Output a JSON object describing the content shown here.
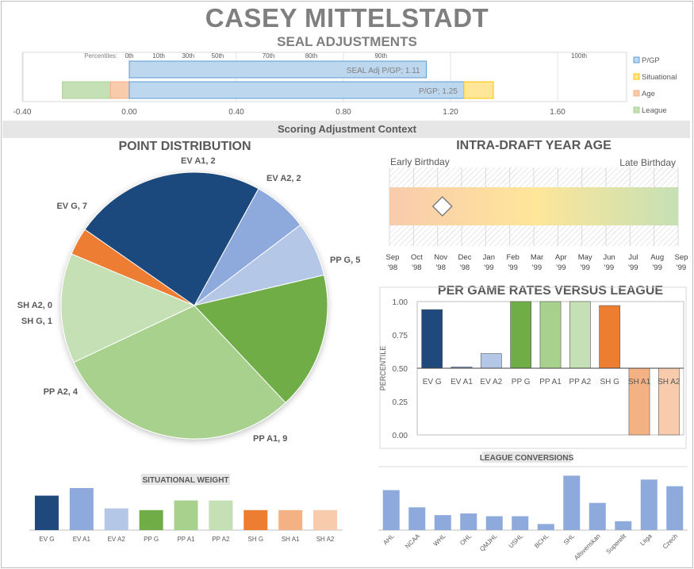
{
  "header": {
    "player_name": "CASEY MITTELSTADT",
    "subtitle": "SEAL ADJUSTMENTS",
    "context_band": "Scoring Adjustment Context"
  },
  "colors": {
    "ev_g": "#1f497d",
    "ev_a1": "#8ea9db",
    "ev_a2": "#b4c7e7",
    "pp_g": "#70ad47",
    "pp_a1": "#a9d18e",
    "pp_a2": "#c5e0b4",
    "sh_g": "#ed7d31",
    "sh_a1": "#f4b183",
    "sh_a2": "#f8cbad",
    "pgp": "#bdd7ee",
    "situational": "#ffe699",
    "age": "#f8cbad",
    "league": "#c5e0b4",
    "bar_blue": "#8ea9db"
  },
  "chart_data": [
    {
      "id": "seal",
      "type": "bar",
      "orientation": "horizontal",
      "title": "",
      "percentiles_label": "Percentiles:",
      "percentiles": [
        {
          "label": "0th",
          "x": 0.0
        },
        {
          "label": "10th",
          "x": 0.11
        },
        {
          "label": "30th",
          "x": 0.22
        },
        {
          "label": "50th",
          "x": 0.33
        },
        {
          "label": "70th",
          "x": 0.52
        },
        {
          "label": "80th",
          "x": 0.68
        },
        {
          "label": "90th",
          "x": 0.94
        },
        {
          "label": "100th",
          "x": 1.68
        }
      ],
      "xlim": [
        -0.4,
        1.92
      ],
      "xticks": [
        "-0.40",
        "0.00",
        "0.40",
        "0.80",
        "1.20",
        "1.60"
      ],
      "bars": [
        {
          "label": "SEAL Adj P/GP; 1.11",
          "value": 1.11
        },
        {
          "label": "P/GP; 1.25",
          "value": 1.25
        }
      ],
      "segments": [
        {
          "series": "League",
          "from": -0.25,
          "to": -0.07
        },
        {
          "series": "Age",
          "from": -0.07,
          "to": 0.0
        },
        {
          "series": "P/GP",
          "from": 0.0,
          "to": 1.25
        },
        {
          "series": "Situational",
          "from": 1.25,
          "to": 1.36
        }
      ],
      "legend": [
        "P/GP",
        "Situational",
        "Age",
        "League"
      ],
      "legend_position": "right"
    },
    {
      "id": "point_distribution",
      "type": "pie",
      "title": "POINT DISTRIBUTION",
      "slices": [
        {
          "label": "EV A1, 2",
          "name": "EV A1",
          "value": 2
        },
        {
          "label": "EV A2, 2",
          "name": "EV A2",
          "value": 2
        },
        {
          "label": "PP G, 5",
          "name": "PP G",
          "value": 5
        },
        {
          "label": "PP A1, 9",
          "name": "PP A1",
          "value": 9
        },
        {
          "label": "PP A2, 4",
          "name": "PP A2",
          "value": 4
        },
        {
          "label": "SH G, 1",
          "name": "SH G",
          "value": 1
        },
        {
          "label": "SH A2, 0",
          "name": "SH A2",
          "value": 0
        },
        {
          "label": "EV G, 7",
          "name": "EV G",
          "value": 7
        }
      ]
    },
    {
      "id": "age",
      "type": "scatter",
      "title": "INTRA-DRAFT YEAR AGE",
      "left_label": "Early Birthday",
      "right_label": "Late Birthday",
      "months": [
        {
          "m": "Sep",
          "y": "'98"
        },
        {
          "m": "Oct",
          "y": "'98"
        },
        {
          "m": "Nov",
          "y": "'98"
        },
        {
          "m": "Dec",
          "y": "'98"
        },
        {
          "m": "Jan",
          "y": "'99"
        },
        {
          "m": "Feb",
          "y": "'99"
        },
        {
          "m": "Mar",
          "y": "'99"
        },
        {
          "m": "Apr",
          "y": "'99"
        },
        {
          "m": "May",
          "y": "'99"
        },
        {
          "m": "Jun",
          "y": "'99"
        },
        {
          "m": "Jul",
          "y": "'99"
        },
        {
          "m": "Aug",
          "y": "'99"
        },
        {
          "m": "Sep",
          "y": "'99"
        }
      ],
      "marker_month_index": 2.2
    },
    {
      "id": "per_game_rates",
      "type": "bar",
      "title": "PER GAME RATES VERSUS LEAGUE",
      "ylabel": "PERCENTILE",
      "ylim": [
        0,
        1
      ],
      "baseline": 0.5,
      "yticks": [
        "1.00",
        "0.75",
        "0.50",
        "0.25",
        "0.00"
      ],
      "categories": [
        "EV G",
        "EV A1",
        "EV A2",
        "PP G",
        "PP A1",
        "PP A2",
        "SH G",
        "SH A1",
        "SH A2"
      ],
      "values": [
        0.94,
        0.51,
        0.61,
        1.0,
        1.0,
        1.0,
        0.97,
        0.0,
        0.0
      ]
    },
    {
      "id": "situational_weight",
      "type": "bar",
      "title": "SITUATIONAL WEIGHT",
      "categories": [
        "EV G",
        "EV A1",
        "EV A2",
        "PP G",
        "PP A1",
        "PP A2",
        "SH G",
        "SH A1",
        "SH A2"
      ],
      "values": [
        1.0,
        1.22,
        0.63,
        0.58,
        0.86,
        0.86,
        0.58,
        0.58,
        0.58
      ]
    },
    {
      "id": "league_conversions",
      "type": "bar",
      "title": "LEAGUE CONVERSIONS",
      "categories": [
        "AHL",
        "NCAA",
        "WHL",
        "OHL",
        "QMJHL",
        "USHL",
        "BCHL",
        "SHL",
        "Allsvenskan",
        "Superelit",
        "Liiga",
        "Czech"
      ],
      "values": [
        0.72,
        0.41,
        0.27,
        0.3,
        0.25,
        0.25,
        0.11,
        0.98,
        0.49,
        0.16,
        0.91,
        0.79
      ]
    }
  ]
}
